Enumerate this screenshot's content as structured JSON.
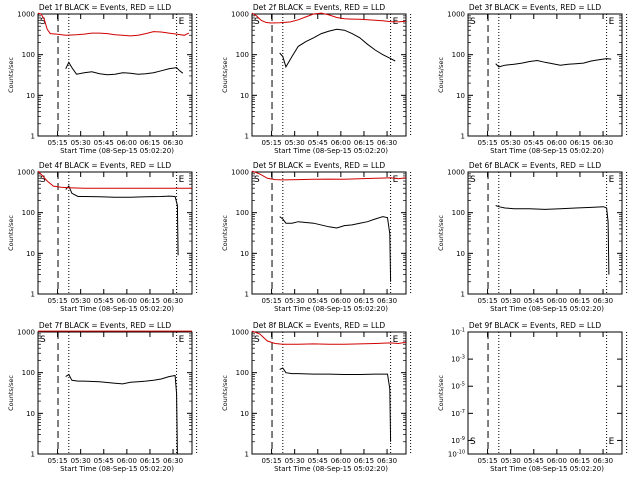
{
  "figure": {
    "description_free": true
  },
  "chart_data": [
    {
      "type": "line",
      "title": "Det 1f BLACK = Events, RED = LLD",
      "ylabel": "Counts/sec",
      "xlabel": "Start Time (08-Sep-15 05:02:20)",
      "yscale": "log",
      "ylim": [
        1,
        1000
      ],
      "ytick_labels": [
        "1",
        "10",
        "100",
        "1000"
      ],
      "xtick_labels": [
        "05:15",
        "05:30",
        "05:45",
        "06:00",
        "06:15",
        "06:30"
      ],
      "xlim_minutes_after_0502": [
        0,
        100
      ],
      "markers": {
        "S": "S",
        "E": "E"
      },
      "series": [
        {
          "color": "#000000",
          "x_min": [
            18,
            20,
            22,
            25,
            30,
            35,
            40,
            45,
            50,
            55,
            60,
            65,
            70,
            75,
            80,
            85,
            90,
            92,
            94
          ],
          "y": [
            45,
            65,
            48,
            33,
            36,
            38,
            34,
            32,
            33,
            36,
            35,
            33,
            34,
            36,
            40,
            45,
            48,
            40,
            35
          ]
        },
        {
          "color": "#d00000",
          "x_min": [
            0,
            2,
            4,
            6,
            8,
            12,
            18,
            25,
            30,
            35,
            40,
            45,
            50,
            55,
            60,
            65,
            70,
            75,
            80,
            85,
            90,
            95,
            98
          ],
          "y": [
            1100,
            1000,
            750,
            420,
            330,
            320,
            300,
            310,
            320,
            340,
            340,
            330,
            310,
            300,
            290,
            300,
            330,
            370,
            360,
            340,
            320,
            300,
            340
          ]
        }
      ],
      "s_marker_min": 1,
      "dashed_line_min": 13,
      "dotted_lines_min": [
        20,
        90,
        103
      ],
      "e_marker_min": 90
    },
    {
      "type": "line",
      "title": "Det 2f BLACK = Events, RED = LLD",
      "ylabel": "Counts/sec",
      "xlabel": "Start Time (08-Sep-15 05:02:20)",
      "yscale": "log",
      "ylim": [
        1,
        1000
      ],
      "ytick_labels": [
        "1",
        "10",
        "100",
        "1000"
      ],
      "xtick_labels": [
        "05:15",
        "05:30",
        "05:45",
        "06:00",
        "06:15",
        "06:30"
      ],
      "series": [
        {
          "color": "#000000",
          "x_min": [
            18,
            20,
            22,
            26,
            30,
            35,
            40,
            45,
            50,
            55,
            60,
            65,
            70,
            75,
            80,
            85,
            90,
            93
          ],
          "y": [
            110,
            90,
            50,
            90,
            160,
            210,
            260,
            330,
            380,
            420,
            400,
            330,
            260,
            180,
            130,
            100,
            80,
            70
          ]
        },
        {
          "color": "#d00000",
          "x_min": [
            0,
            3,
            6,
            9,
            12,
            18,
            25,
            30,
            35,
            40,
            45,
            50,
            55,
            60,
            65,
            70,
            75,
            80,
            85,
            90,
            95,
            100
          ],
          "y": [
            1100,
            900,
            700,
            620,
            600,
            610,
            640,
            720,
            850,
            1000,
            1050,
            950,
            820,
            760,
            750,
            740,
            720,
            700,
            680,
            650,
            640,
            660
          ]
        }
      ]
    },
    {
      "type": "line",
      "title": "Det 3f BLACK = Events, RED = LLD",
      "ylabel": "Counts/sec",
      "xlabel": "Start Time (08-Sep-15 05:02:20)",
      "yscale": "log",
      "ylim": [
        1,
        1000
      ],
      "ytick_labels": [
        "1",
        "10",
        "100",
        "1000"
      ],
      "xtick_labels": [
        "05:15",
        "05:30",
        "05:45",
        "06:00",
        "06:15",
        "06:30"
      ],
      "series": [
        {
          "color": "#000000",
          "x_min": [
            18,
            20,
            24,
            30,
            35,
            40,
            45,
            50,
            55,
            60,
            65,
            70,
            75,
            80,
            85,
            90,
            93
          ],
          "y": [
            60,
            50,
            55,
            58,
            62,
            68,
            72,
            65,
            60,
            55,
            58,
            60,
            62,
            70,
            75,
            80,
            78
          ]
        }
      ]
    },
    {
      "type": "line",
      "title": "Det 4f BLACK = Events, RED = LLD",
      "ylabel": "Counts/sec",
      "xlabel": "Start Time (08-Sep-15 05:02:20)",
      "yscale": "log",
      "ylim": [
        1,
        1000
      ],
      "ytick_labels": [
        "1",
        "10",
        "100",
        "1000"
      ],
      "xtick_labels": [
        "05:15",
        "05:30",
        "05:45",
        "06:00",
        "06:15",
        "06:30"
      ],
      "series": [
        {
          "color": "#000000",
          "x_min": [
            18,
            20,
            22,
            26,
            30,
            40,
            50,
            60,
            70,
            80,
            85,
            89,
            90.5,
            91
          ],
          "y": [
            370,
            450,
            300,
            250,
            250,
            245,
            240,
            240,
            245,
            250,
            255,
            250,
            150,
            9
          ]
        },
        {
          "color": "#d00000",
          "x_min": [
            0,
            3,
            6,
            10,
            15,
            20,
            30,
            40,
            50,
            60,
            70,
            80,
            90,
            100
          ],
          "y": [
            1100,
            800,
            600,
            450,
            420,
            410,
            400,
            400,
            400,
            400,
            400,
            400,
            400,
            400
          ]
        }
      ]
    },
    {
      "type": "line",
      "title": "Det 5f BLACK = Events, RED = LLD",
      "ylabel": "Counts/sec",
      "xlabel": "Start Time (08-Sep-15 05:02:20)",
      "yscale": "log",
      "ylim": [
        1,
        1000
      ],
      "ytick_labels": [
        "1",
        "10",
        "100",
        "1000"
      ],
      "xtick_labels": [
        "05:15",
        "05:30",
        "05:45",
        "06:00",
        "06:15",
        "06:30"
      ],
      "series": [
        {
          "color": "#000000",
          "x_min": [
            18,
            20,
            22,
            26,
            30,
            40,
            50,
            55,
            60,
            65,
            70,
            75,
            80,
            85,
            88,
            89.5,
            90
          ],
          "y": [
            80,
            70,
            55,
            55,
            60,
            55,
            45,
            42,
            48,
            50,
            55,
            60,
            70,
            80,
            75,
            30,
            2
          ]
        },
        {
          "color": "#d00000",
          "x_min": [
            0,
            5,
            10,
            15,
            20,
            30,
            40,
            50,
            60,
            70,
            80,
            90,
            95,
            100
          ],
          "y": [
            1100,
            900,
            700,
            650,
            640,
            650,
            660,
            670,
            660,
            680,
            700,
            720,
            680,
            720
          ]
        }
      ]
    },
    {
      "type": "line",
      "title": "Det 6f BLACK = Events, RED = LLD",
      "ylabel": "Counts/sec",
      "xlabel": "Start Time (08-Sep-15 05:02:20)",
      "yscale": "log",
      "ylim": [
        1,
        1000
      ],
      "ytick_labels": [
        "1",
        "10",
        "100",
        "1000"
      ],
      "xtick_labels": [
        "05:15",
        "05:30",
        "05:45",
        "06:00",
        "06:15",
        "06:30"
      ],
      "series": [
        {
          "color": "#000000",
          "x_min": [
            18,
            20,
            24,
            30,
            40,
            50,
            60,
            70,
            80,
            88,
            90,
            91,
            91.5
          ],
          "y": [
            150,
            140,
            130,
            125,
            125,
            120,
            125,
            130,
            135,
            140,
            130,
            60,
            3
          ]
        }
      ]
    },
    {
      "type": "line",
      "title": "Det 7f BLACK = Events, RED = LLD",
      "ylabel": "Counts/sec",
      "xlabel": "Start Time (08-Sep-15 05:02:20)",
      "yscale": "log",
      "ylim": [
        1,
        1000
      ],
      "ytick_labels": [
        "1",
        "10",
        "100",
        "1000"
      ],
      "xtick_labels": [
        "05:15",
        "05:30",
        "05:45",
        "06:00",
        "06:15",
        "06:30"
      ],
      "series": [
        {
          "color": "#000000",
          "x_min": [
            18,
            20,
            22,
            26,
            30,
            40,
            50,
            55,
            60,
            65,
            70,
            75,
            80,
            85,
            89,
            90,
            90.5
          ],
          "y": [
            80,
            90,
            65,
            62,
            62,
            60,
            55,
            53,
            58,
            60,
            62,
            65,
            70,
            80,
            85,
            30,
            1
          ]
        },
        {
          "color": "#d00000",
          "x_min": [
            0,
            5,
            10,
            20,
            30,
            40,
            50,
            60,
            70,
            80,
            90,
            100
          ],
          "y": [
            1150,
            1150,
            1150,
            1130,
            1100,
            1100,
            1090,
            1080,
            1090,
            1100,
            1100,
            1120
          ]
        }
      ]
    },
    {
      "type": "line",
      "title": "Det 8f BLACK = Events, RED = LLD",
      "ylabel": "Counts/sec",
      "xlabel": "Start Time (08-Sep-15 05:02:20)",
      "yscale": "log",
      "ylim": [
        1,
        1000
      ],
      "ytick_labels": [
        "1",
        "10",
        "100",
        "1000"
      ],
      "xtick_labels": [
        "05:15",
        "05:30",
        "05:45",
        "06:00",
        "06:15",
        "06:30"
      ],
      "series": [
        {
          "color": "#000000",
          "x_min": [
            18,
            20,
            22,
            26,
            30,
            40,
            50,
            60,
            70,
            80,
            88,
            89.5,
            90
          ],
          "y": [
            120,
            130,
            100,
            95,
            95,
            92,
            92,
            90,
            90,
            92,
            92,
            40,
            2
          ]
        },
        {
          "color": "#d00000",
          "x_min": [
            0,
            5,
            10,
            15,
            20,
            30,
            40,
            50,
            60,
            70,
            80,
            90,
            95,
            100
          ],
          "y": [
            1150,
            900,
            600,
            520,
            500,
            500,
            510,
            500,
            500,
            510,
            520,
            540,
            520,
            560
          ]
        }
      ]
    },
    {
      "type": "line",
      "title": "Det 9f BLACK = Events, RED = LLD",
      "ylabel": "Counts/sec",
      "xlabel": "Start Time (08-Sep-15 05:02:20)",
      "yscale": "log",
      "ylim": [
        1e-10,
        0.1
      ],
      "ytick_labels": [
        "10^-1",
        "10^-3",
        "10^-5",
        "10^-7",
        "10^-9",
        "10^-10"
      ],
      "xtick_labels": [
        "05:15",
        "05:30",
        "05:45",
        "06:00",
        "06:15",
        "06:30"
      ],
      "series": []
    }
  ]
}
